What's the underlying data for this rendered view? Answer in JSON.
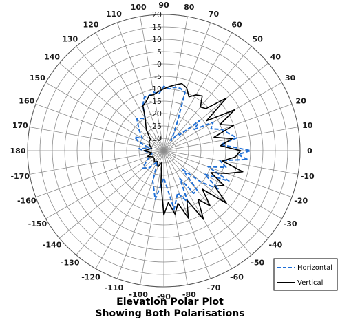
{
  "chart_data": {
    "type": "polar",
    "title_lines": [
      "Elevation Polar Plot",
      "Showing Both Polarisations"
    ],
    "angular_ticks": [
      0,
      10,
      20,
      30,
      40,
      50,
      60,
      70,
      80,
      90,
      100,
      110,
      120,
      130,
      140,
      150,
      160,
      170,
      180,
      -170,
      -160,
      -150,
      -140,
      -130,
      -120,
      -110,
      -100,
      -90,
      -80,
      -70,
      -60,
      -50,
      -40,
      -30,
      -20,
      -10
    ],
    "angular_tick_labels": [
      "0",
      "10",
      "20",
      "30",
      "40",
      "50",
      "60",
      "70",
      "80",
      "90",
      "100",
      "110",
      "120",
      "130",
      "140",
      "150",
      "160",
      "170",
      "180",
      "-170",
      "-160",
      "-150",
      "-140",
      "-130",
      "-120",
      "-110",
      "-100",
      "-90",
      "-80",
      "-70",
      "-60",
      "-50",
      "-40",
      "-30",
      "-20",
      "-10"
    ],
    "radial_ticks": [
      -30,
      -25,
      -20,
      -15,
      -10,
      -5,
      0,
      5,
      10,
      15,
      20
    ],
    "radial_tick_labels": [
      "-30",
      "-25",
      "-20",
      "-15",
      "-10",
      "-5",
      "0",
      "5",
      "10",
      "15",
      "20"
    ],
    "rlim": [
      -35,
      20
    ],
    "grid": true,
    "legend_position": "bottom-right",
    "series": [
      {
        "name": "Horizontal",
        "color": "#1f6fd6",
        "style": "dashed",
        "angles": [
          -180,
          -165,
          -150,
          -140,
          -130,
          -120,
          -110,
          -100,
          -90,
          -80,
          -72,
          -65,
          -60,
          -55,
          -50,
          -45,
          -40,
          -35,
          -30,
          -25,
          -20,
          -15,
          -10,
          -6,
          -3,
          0,
          3,
          6,
          10,
          15,
          20,
          25,
          30,
          35,
          40,
          45,
          50,
          55,
          60,
          65,
          70,
          75,
          80,
          85,
          90,
          95,
          100,
          105,
          110,
          115,
          120,
          130,
          140,
          150,
          155,
          160,
          165,
          170,
          175,
          180
        ],
        "values": [
          -27,
          -30,
          -27,
          -24,
          -26,
          -30,
          -22,
          -15,
          -24,
          -11,
          -17,
          -12,
          -22,
          -14,
          -14,
          -24,
          -15,
          -8,
          -16,
          -6,
          -16,
          -9,
          -12,
          -1,
          -5,
          0,
          -7,
          -12,
          -5,
          -8,
          -10,
          -14,
          -12,
          -20,
          -16,
          -26,
          -26,
          -30,
          -27,
          -22,
          -10,
          -9,
          -9,
          -10,
          -9,
          -12,
          -11,
          -12,
          -12,
          -15,
          -20,
          -18,
          -22,
          -25,
          -22,
          -24,
          -27,
          -30,
          -25,
          -27
        ]
      },
      {
        "name": "Vertical",
        "color": "#000000",
        "style": "solid",
        "angles": [
          -180,
          -170,
          -160,
          -150,
          -140,
          -130,
          -120,
          -110,
          -100,
          -95,
          -90,
          -85,
          -80,
          -75,
          -70,
          -65,
          -60,
          -55,
          -50,
          -45,
          -40,
          -35,
          -30,
          -25,
          -20,
          -15,
          -10,
          -5,
          0,
          5,
          10,
          15,
          20,
          25,
          30,
          35,
          40,
          45,
          50,
          55,
          60,
          65,
          70,
          75,
          80,
          85,
          90,
          95,
          100,
          105,
          110,
          115,
          120,
          130,
          140,
          150,
          160,
          170,
          180
        ],
        "values": [
          -27,
          -30,
          -28,
          -30,
          -30,
          -29,
          -30,
          -28,
          -30,
          -22,
          -9,
          -14,
          -9,
          -13,
          -6,
          -13,
          -3,
          -11,
          -6,
          -13,
          -2,
          -10,
          -7,
          -14,
          -8,
          -2,
          -11,
          -6,
          -4,
          -12,
          -7,
          -14,
          -5,
          -10,
          -2,
          -14,
          -2,
          -11,
          -12,
          -8,
          -9,
          -11,
          -8,
          -7,
          -8,
          -9,
          -10,
          -11,
          -12,
          -12,
          -14,
          -15,
          -20,
          -24,
          -28,
          -28,
          -29,
          -30,
          -27
        ]
      }
    ]
  }
}
